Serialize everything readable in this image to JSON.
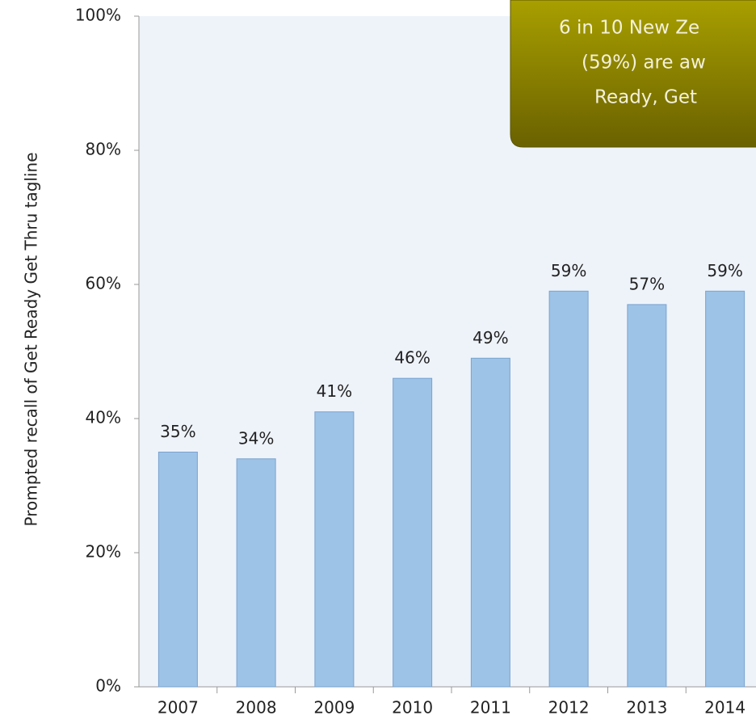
{
  "chart_data": {
    "type": "bar",
    "y_axis_label": "Prompted recall of Get Ready Get Thru tagline",
    "categories": [
      "2007",
      "2008",
      "2009",
      "2010",
      "2011",
      "2012",
      "2013",
      "2014"
    ],
    "values": [
      35,
      34,
      41,
      46,
      49,
      59,
      57,
      59
    ],
    "value_labels": [
      "35%",
      "34%",
      "41%",
      "46%",
      "49%",
      "59%",
      "57%",
      "59%"
    ],
    "color": "#9dc3e6",
    "ylim": [
      0,
      100
    ],
    "yticks": [
      {
        "value": 0,
        "label": "0%"
      },
      {
        "value": 20,
        "label": "20%"
      },
      {
        "value": 40,
        "label": "40%"
      },
      {
        "value": 60,
        "label": "60%"
      },
      {
        "value": 80,
        "label": "80%"
      },
      {
        "value": 100,
        "label": "100%"
      }
    ],
    "annotation": [
      "6 in 10 New Ze",
      "(59%) are aw",
      "Ready, Get"
    ]
  }
}
